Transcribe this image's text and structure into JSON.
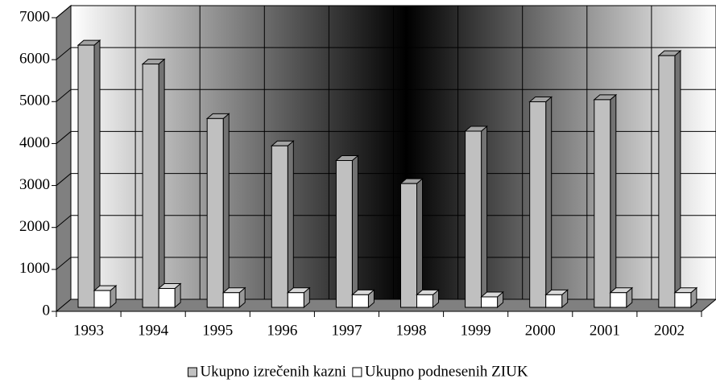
{
  "chart_data": {
    "type": "bar",
    "categories": [
      "1993",
      "1994",
      "1995",
      "1996",
      "1997",
      "1998",
      "1999",
      "2000",
      "2001",
      "2002"
    ],
    "series": [
      {
        "name": "Ukupno izrečenih kazni",
        "color": "#c0c0c0",
        "values": [
          6250,
          5800,
          4500,
          3850,
          3500,
          2950,
          4200,
          4900,
          4950,
          6000
        ]
      },
      {
        "name": "Ukupno podnesenih ZIUK",
        "color": "#ffffff",
        "values": [
          400,
          450,
          350,
          350,
          300,
          300,
          250,
          300,
          350,
          350
        ]
      }
    ],
    "ylim": [
      0,
      7000
    ],
    "yticks": [
      0,
      1000,
      2000,
      3000,
      4000,
      5000,
      6000,
      7000
    ],
    "grid": true,
    "legend": "bottom"
  }
}
